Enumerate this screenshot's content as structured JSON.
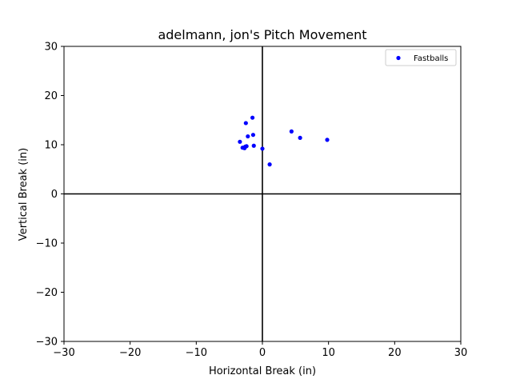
{
  "chart_data": {
    "type": "scatter",
    "title": "adelmann, jon's Pitch Movement",
    "xlabel": "Horizontal Break (in)",
    "ylabel": "Vertical Break (in)",
    "xlim": [
      -30,
      30
    ],
    "ylim": [
      -30,
      30
    ],
    "xticks": [
      -30,
      -20,
      -10,
      0,
      10,
      20,
      30
    ],
    "yticks": [
      -30,
      -20,
      -10,
      0,
      10,
      20,
      30
    ],
    "xtick_labels": [
      "−30",
      "−20",
      "−10",
      "0",
      "10",
      "20",
      "30"
    ],
    "ytick_labels": [
      "−30",
      "−20",
      "−10",
      "0",
      "10",
      "20",
      "30"
    ],
    "grid": false,
    "legend": {
      "position": "top-right"
    },
    "series": [
      {
        "name": "Fastballs",
        "color": "#0000ff",
        "x": [
          -1.5,
          -2.5,
          -1.4,
          -2.2,
          -3.4,
          -1.3,
          -2.6,
          -3.0,
          -2.7,
          -2.4,
          0.0,
          4.4,
          5.7,
          9.8,
          1.1
        ],
        "y": [
          15.5,
          14.4,
          12.0,
          11.7,
          10.6,
          9.8,
          9.6,
          9.4,
          9.3,
          9.7,
          9.2,
          12.7,
          11.4,
          11.0,
          6.0
        ]
      }
    ],
    "reference_lines": [
      {
        "axis": "x",
        "value": 0,
        "color": "#000000"
      },
      {
        "axis": "y",
        "value": 0,
        "color": "#000000"
      }
    ]
  }
}
